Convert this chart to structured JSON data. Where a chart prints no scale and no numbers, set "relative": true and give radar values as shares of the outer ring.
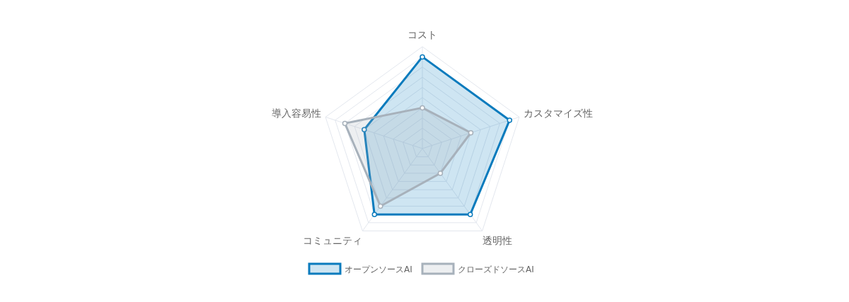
{
  "chart_data": {
    "type": "radar",
    "relative": true,
    "categories": [
      "コスト",
      "カスタマイズ性",
      "透明性",
      "コミュニティ",
      "導入容易性"
    ],
    "series": [
      {
        "name": "オープンソースAI",
        "color": "#0a7bbd",
        "values": [
          0.9,
          0.9,
          0.8,
          0.8,
          0.6
        ]
      },
      {
        "name": "クローズドソースAI",
        "color": "#a7b1bb",
        "values": [
          0.4,
          0.5,
          0.3,
          0.7,
          0.8
        ]
      }
    ],
    "grid": true,
    "legend": "bottom",
    "marker": "circle"
  }
}
